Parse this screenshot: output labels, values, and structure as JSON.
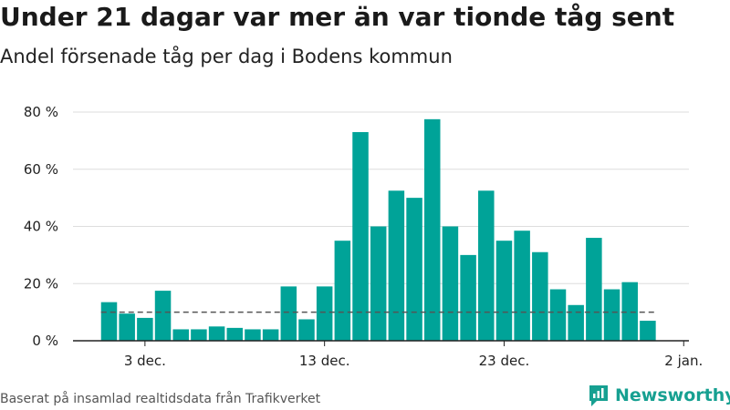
{
  "title": "Under 21 dagar var mer än var tionde tåg sent",
  "subtitle": "Andel försenade tåg per dag i Bodens kommun",
  "source": "Baserat på insamlad realtidsdata från Trafikverket",
  "brand": {
    "name": "Newsworthy",
    "icon": "newsworthy-logo-icon",
    "color": "#16a091"
  },
  "colors": {
    "bar": "#00a398",
    "grid": "#dddddd",
    "reference": "#555555",
    "axis": "#222222"
  },
  "chart_data": {
    "type": "bar",
    "x_start": "2019-12-01",
    "categories": [
      "1 dec.",
      "2 dec.",
      "3 dec.",
      "4 dec.",
      "5 dec.",
      "6 dec.",
      "7 dec.",
      "8 dec.",
      "9 dec.",
      "10 dec.",
      "11 dec.",
      "12 dec.",
      "13 dec.",
      "14 dec.",
      "15 dec.",
      "16 dec.",
      "17 dec.",
      "18 dec.",
      "19 dec.",
      "20 dec.",
      "21 dec.",
      "22 dec.",
      "23 dec.",
      "24 dec.",
      "25 dec.",
      "26 dec.",
      "27 dec.",
      "28 dec.",
      "29 dec.",
      "30 dec.",
      "31 dec."
    ],
    "values": [
      13.5,
      9.5,
      8,
      17.5,
      4,
      4,
      5,
      4.5,
      4,
      4,
      19,
      7.5,
      19,
      35,
      73,
      40,
      52.5,
      50,
      77.5,
      40,
      30,
      52.5,
      35,
      38.5,
      31,
      18,
      12.5,
      36,
      18,
      20.5,
      7
    ],
    "reference_line": 10,
    "x_ticks": [
      {
        "label": "3 dec.",
        "index": 2
      },
      {
        "label": "13 dec.",
        "index": 12
      },
      {
        "label": "23 dec.",
        "index": 22
      },
      {
        "label": "2 jan.",
        "index": 32
      }
    ],
    "y_ticks": [
      {
        "label": "0 %",
        "value": 0
      },
      {
        "label": "20 %",
        "value": 20
      },
      {
        "label": "40 %",
        "value": 40
      },
      {
        "label": "60 %",
        "value": 60
      },
      {
        "label": "80 %",
        "value": 80
      }
    ],
    "ylim": [
      0,
      80
    ],
    "grid": true,
    "xlabel": "",
    "ylabel": ""
  }
}
